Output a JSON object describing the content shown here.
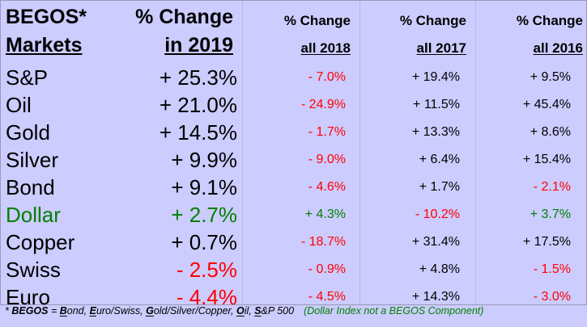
{
  "header": {
    "col1_line1": "BEGOS*",
    "col1_line2": "Markets",
    "col2_line1": "% Change",
    "col2_line2": "in 2019",
    "col3_line1": "% Change",
    "col3_line2": "all 2018",
    "col4_line1": "% Change",
    "col4_line2": "all 2017",
    "col5_line1": "% Change",
    "col5_line2": "all 2016"
  },
  "rows": [
    {
      "name": "S&P",
      "y2019": "+ 25.3%",
      "y2018": "- 7.0%",
      "y2017": "+ 19.4%",
      "y2016": "+ 9.5%"
    },
    {
      "name": "Oil",
      "y2019": "+ 21.0%",
      "y2018": "- 24.9%",
      "y2017": "+ 11.5%",
      "y2016": "+ 45.4%"
    },
    {
      "name": "Gold",
      "y2019": "+ 14.5%",
      "y2018": "- 1.7%",
      "y2017": "+ 13.3%",
      "y2016": "+ 8.6%"
    },
    {
      "name": "Silver",
      "y2019": "+ 9.9%",
      "y2018": "- 9.0%",
      "y2017": "+ 6.4%",
      "y2016": "+ 15.4%"
    },
    {
      "name": "Bond",
      "y2019": "+ 9.1%",
      "y2018": "- 4.6%",
      "y2017": "+ 1.7%",
      "y2016": "- 2.1%"
    },
    {
      "name": "Dollar",
      "y2019": "+ 2.7%",
      "y2018": "+ 4.3%",
      "y2017": "- 10.2%",
      "y2016": "+ 3.7%"
    },
    {
      "name": "Copper",
      "y2019": "+ 0.7%",
      "y2018": "- 18.7%",
      "y2017": "+ 31.4%",
      "y2016": "+ 17.5%"
    },
    {
      "name": "Swiss",
      "y2019": "- 2.5%",
      "y2018": "- 0.9%",
      "y2017": "+ 4.8%",
      "y2016": "- 1.5%"
    },
    {
      "name": "Euro",
      "y2019": "- 4.4%",
      "y2018": "- 4.5%",
      "y2017": "+ 14.3%",
      "y2016": "- 3.0%"
    }
  ],
  "footer": {
    "star": "* ",
    "begos": "BEGOS",
    "eq": " = ",
    "b": "B",
    "b_rest": "ond, ",
    "e": "E",
    "e_rest": "uro/Swiss, ",
    "g": "G",
    "g_rest": "old/Silver/Copper, ",
    "o": "O",
    "o_rest": "il, ",
    "s": "S",
    "s_rest": "&P 500",
    "note": "(Dollar Index not a BEGOS Component)"
  },
  "colors": {
    "background": "#ccccff",
    "positive": "#000000",
    "negative": "#ff0000",
    "dollar": "#008000"
  }
}
